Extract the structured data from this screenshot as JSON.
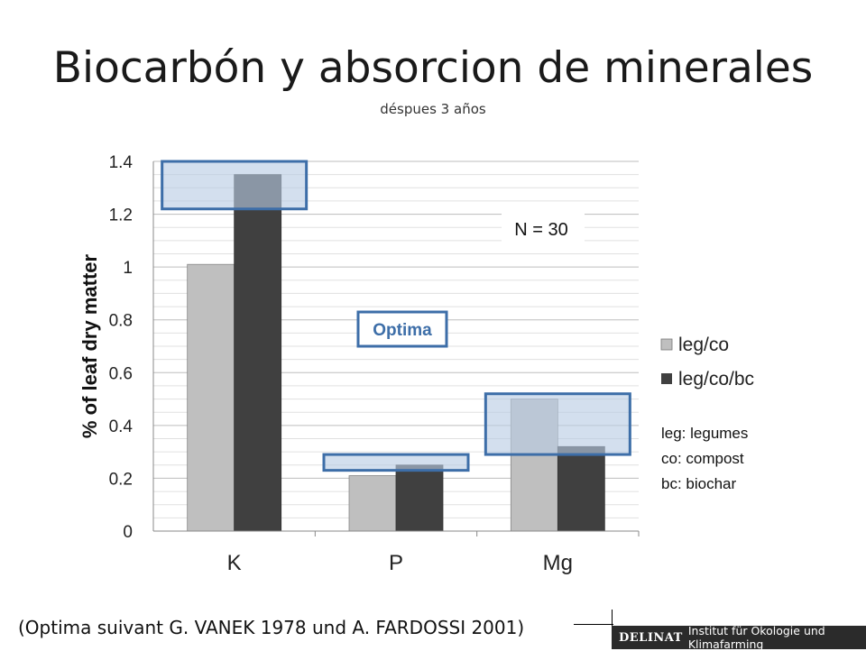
{
  "header": {
    "title": "Biocarbón y absorcion de minerales",
    "subtitle": "déspues 3 años"
  },
  "chart_data": {
    "type": "bar",
    "categories": [
      "K",
      "P",
      "Mg"
    ],
    "series": [
      {
        "name": "leg/co",
        "values": [
          1.01,
          0.21,
          0.5
        ],
        "color": "#bfbfbf"
      },
      {
        "name": "leg/co/bc",
        "values": [
          1.35,
          0.25,
          0.32
        ],
        "color": "#404040"
      }
    ],
    "ylabel": "% of leaf dry matter",
    "ylim": [
      0,
      1.4
    ],
    "yticks": [
      "0",
      "0.2",
      "0.4",
      "0.6",
      "0.8",
      "1",
      "1.2",
      "1.4"
    ],
    "grid": true,
    "legend": "right",
    "optima_ranges": [
      {
        "category": "K",
        "range": [
          1.22,
          1.4
        ]
      },
      {
        "category": "P",
        "range": [
          0.23,
          0.29
        ]
      },
      {
        "category": "Mg",
        "range": [
          0.29,
          0.52
        ]
      }
    ],
    "optima_color": "#b8cce4",
    "optima_border": "#3d6ea8",
    "annotations": {
      "optima_label": "Optima",
      "n_label": "N = 30",
      "abbreviations": [
        "leg: legumes",
        "co: compost",
        "bc: biochar"
      ]
    }
  },
  "footer": {
    "note": "(Optima suivant G. VANEK 1978 und A. FARDOSSI 2001)",
    "logo_brand": "DELINAT",
    "logo_institute": "Institut für Ökologie und Klimafarming"
  }
}
